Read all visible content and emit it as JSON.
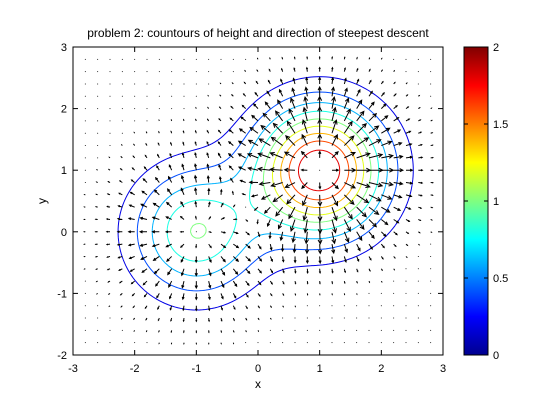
{
  "chart_data": {
    "type": "contour",
    "title": "problem 2: countours of height and direction of steepest descent",
    "xlabel": "x",
    "ylabel": "y",
    "xlim": [
      -3,
      3
    ],
    "ylim": [
      -2,
      3
    ],
    "xticks": [
      "-3",
      "-2",
      "-1",
      "0",
      "1",
      "2",
      "3"
    ],
    "yticks": [
      "-2",
      "-1",
      "0",
      "1",
      "2",
      "3"
    ],
    "surface": {
      "peaks": [
        {
          "x": 1,
          "y": 1,
          "height": 2.0
        },
        {
          "x": -1,
          "y": 0,
          "height": 1.0
        }
      ]
    },
    "contour_levels": [
      0.2,
      0.4,
      0.6,
      0.8,
      1.0,
      1.2,
      1.4,
      1.6,
      1.8
    ],
    "quiver": {
      "description": "direction of steepest descent",
      "grid_spacing": 0.2
    },
    "colorbar": {
      "colormap": "jet",
      "range": [
        0,
        2
      ],
      "ticks": [
        "0",
        "0.5",
        "1",
        "1.5",
        "2"
      ]
    },
    "grid": false
  }
}
